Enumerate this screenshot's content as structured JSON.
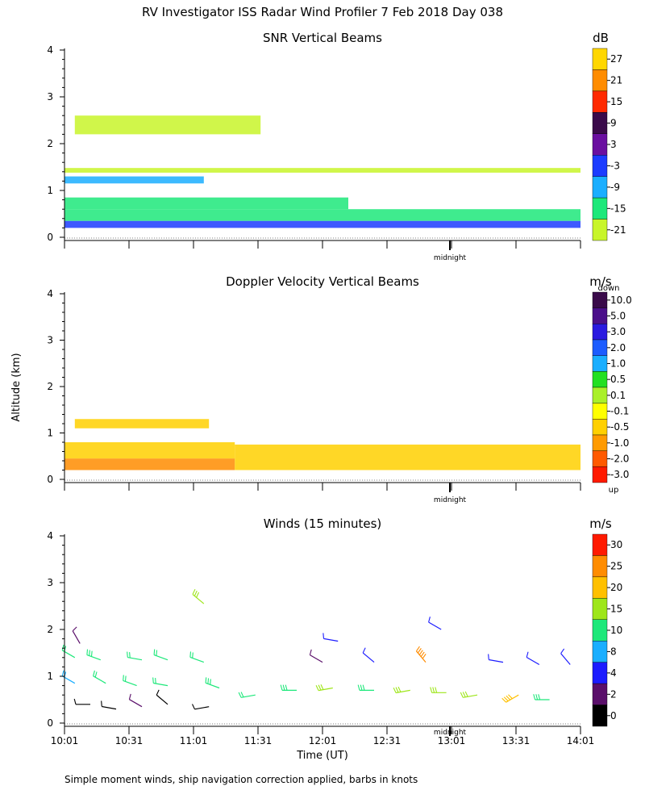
{
  "title": "RV Investigator ISS Radar Wind Profiler   7 Feb 2018 Day 038",
  "footnote": "Simple moment winds, ship navigation correction applied, barbs in knots",
  "axes": {
    "ylabel": "Altitude (km)",
    "xlabel": "Time (UT)",
    "yticks": [
      "0",
      "1",
      "2",
      "3",
      "4"
    ],
    "xticks": [
      "10:01",
      "10:31",
      "11:01",
      "11:31",
      "12:01",
      "12:31",
      "13:01",
      "13:31",
      "14:01"
    ],
    "midnight_label": "midnight"
  },
  "chart_data": [
    {
      "type": "heatmap",
      "title": "SNR Vertical Beams",
      "unit": "dB",
      "ylim": [
        0,
        4
      ],
      "colorbar": {
        "labels": [
          "27",
          "21",
          "15",
          "9",
          "3",
          "-3",
          "-9",
          "-15",
          "-21"
        ],
        "colors": [
          "#ffd700",
          "#ff8c00",
          "#ff2a00",
          "#3a0a4a",
          "#6a0fa0",
          "#1c3cff",
          "#1aaeff",
          "#1de87a",
          "#c8f52a"
        ]
      },
      "layers": [
        {
          "name": "layer-low",
          "y_from": 0.2,
          "y_to": 0.35,
          "x_from": 0,
          "x_to": 1,
          "color": "#1c3cff"
        },
        {
          "name": "layer-mid",
          "y_from": 0.35,
          "y_to": 0.6,
          "x_from": 0,
          "x_to": 1,
          "color": "#1de87a"
        },
        {
          "name": "layer-upper",
          "y_from": 0.6,
          "y_to": 0.85,
          "x_from": 0,
          "x_to": 0.55,
          "color": "#1de87a"
        },
        {
          "name": "layer-1km",
          "y_from": 1.15,
          "y_to": 1.3,
          "x_from": 0,
          "x_to": 0.27,
          "color": "#1aaeff"
        },
        {
          "name": "layer-1p4",
          "y_from": 1.38,
          "y_to": 1.48,
          "x_from": 0,
          "x_to": 1,
          "color": "#c8f52a"
        },
        {
          "name": "layer-2p4",
          "y_from": 2.2,
          "y_to": 2.6,
          "x_from": 0.02,
          "x_to": 0.38,
          "color": "#c8f52a"
        }
      ]
    },
    {
      "type": "heatmap",
      "title": "Doppler Velocity Vertical Beams",
      "unit": "m/s",
      "ylim": [
        0,
        4
      ],
      "colorbar": {
        "labels": [
          "10.0",
          "5.0",
          "3.0",
          "2.0",
          "1.0",
          "0.5",
          "0.1",
          "-0.1",
          "-0.5",
          "-1.0",
          "-2.0",
          "-3.0"
        ],
        "colors": [
          "#3a0a4a",
          "#4b0f8a",
          "#2a1ae0",
          "#1c5cff",
          "#1aaeff",
          "#22e022",
          "#aaf02a",
          "#ffff00",
          "#ffd000",
          "#ff9a00",
          "#ff5a00",
          "#ff1a00"
        ],
        "top_label": "down",
        "bottom_label": "up"
      },
      "layers": [
        {
          "name": "layer-low",
          "y_from": 0.2,
          "y_to": 0.45,
          "x_from": 0,
          "x_to": 0.33,
          "color": "#ff8c00"
        },
        {
          "name": "layer-mid",
          "y_from": 0.45,
          "y_to": 0.8,
          "x_from": 0,
          "x_to": 0.33,
          "color": "#ffd000"
        },
        {
          "name": "layer-band",
          "y_from": 0.2,
          "y_to": 0.75,
          "x_from": 0.33,
          "x_to": 1,
          "color": "#ffd000"
        },
        {
          "name": "layer-1p2",
          "y_from": 1.1,
          "y_to": 1.3,
          "x_from": 0.02,
          "x_to": 0.28,
          "color": "#ffd000"
        }
      ]
    },
    {
      "type": "barbs",
      "title": "Winds (15 minutes)",
      "unit": "m/s",
      "ylim": [
        0,
        4
      ],
      "colorbar": {
        "labels": [
          "30",
          "25",
          "20",
          "15",
          "10",
          "8",
          "4",
          "2",
          "0"
        ],
        "colors": [
          "#ff1a00",
          "#ff8c00",
          "#ffc000",
          "#9ee61a",
          "#1de87a",
          "#1aaeff",
          "#1c1cff",
          "#5a0f6a",
          "#000000"
        ]
      },
      "barbs": [
        {
          "x": 0.02,
          "y": 1.4,
          "dir": 300,
          "speed": 12
        },
        {
          "x": 0.07,
          "y": 1.35,
          "dir": 290,
          "speed": 13
        },
        {
          "x": 0.15,
          "y": 1.35,
          "dir": 280,
          "speed": 12
        },
        {
          "x": 0.2,
          "y": 1.35,
          "dir": 290,
          "speed": 11
        },
        {
          "x": 0.27,
          "y": 1.3,
          "dir": 290,
          "speed": 12
        },
        {
          "x": 0.02,
          "y": 0.85,
          "dir": 300,
          "speed": 9
        },
        {
          "x": 0.08,
          "y": 0.85,
          "dir": 300,
          "speed": 11
        },
        {
          "x": 0.14,
          "y": 0.8,
          "dir": 290,
          "speed": 12
        },
        {
          "x": 0.2,
          "y": 0.8,
          "dir": 280,
          "speed": 11
        },
        {
          "x": 0.3,
          "y": 0.75,
          "dir": 290,
          "speed": 13
        },
        {
          "x": 0.37,
          "y": 0.6,
          "dir": 260,
          "speed": 12
        },
        {
          "x": 0.45,
          "y": 0.7,
          "dir": 270,
          "speed": 13
        },
        {
          "x": 0.52,
          "y": 0.75,
          "dir": 260,
          "speed": 15
        },
        {
          "x": 0.6,
          "y": 0.7,
          "dir": 270,
          "speed": 14
        },
        {
          "x": 0.67,
          "y": 0.7,
          "dir": 260,
          "speed": 15
        },
        {
          "x": 0.74,
          "y": 0.65,
          "dir": 270,
          "speed": 16
        },
        {
          "x": 0.8,
          "y": 0.6,
          "dir": 260,
          "speed": 15
        },
        {
          "x": 0.88,
          "y": 0.6,
          "dir": 240,
          "speed": 20
        },
        {
          "x": 0.94,
          "y": 0.5,
          "dir": 270,
          "speed": 13
        },
        {
          "x": 0.27,
          "y": 2.55,
          "dir": 310,
          "speed": 15
        },
        {
          "x": 0.53,
          "y": 1.75,
          "dir": 280,
          "speed": 4
        },
        {
          "x": 0.73,
          "y": 2.0,
          "dir": 300,
          "speed": 4
        },
        {
          "x": 0.7,
          "y": 1.3,
          "dir": 320,
          "speed": 28
        },
        {
          "x": 0.6,
          "y": 1.3,
          "dir": 310,
          "speed": 4
        },
        {
          "x": 0.5,
          "y": 1.3,
          "dir": 300,
          "speed": 3
        },
        {
          "x": 0.85,
          "y": 1.3,
          "dir": 280,
          "speed": 4
        },
        {
          "x": 0.92,
          "y": 1.25,
          "dir": 300,
          "speed": 4
        },
        {
          "x": 0.98,
          "y": 1.25,
          "dir": 320,
          "speed": 4
        },
        {
          "x": 0.03,
          "y": 1.7,
          "dir": 330,
          "speed": 3
        },
        {
          "x": 0.05,
          "y": 0.4,
          "dir": 270,
          "speed": 1
        },
        {
          "x": 0.1,
          "y": 0.3,
          "dir": 280,
          "speed": 1
        },
        {
          "x": 0.15,
          "y": 0.35,
          "dir": 300,
          "speed": 2
        },
        {
          "x": 0.2,
          "y": 0.4,
          "dir": 310,
          "speed": 1
        },
        {
          "x": 0.28,
          "y": 0.35,
          "dir": 260,
          "speed": 1
        }
      ]
    }
  ]
}
